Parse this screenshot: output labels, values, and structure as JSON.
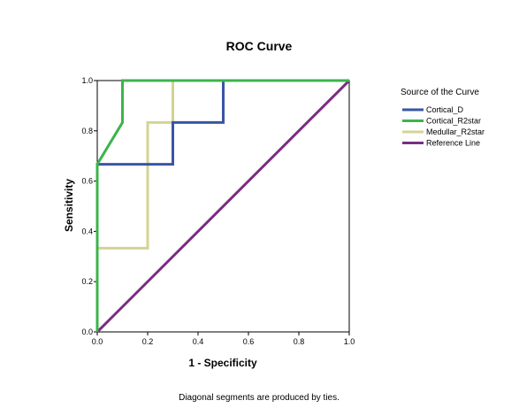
{
  "chart_data": {
    "type": "line",
    "title": "ROC Curve",
    "xlabel": "1 - Specificity",
    "ylabel": "Sensitivity",
    "xlim": [
      0,
      1
    ],
    "ylim": [
      0,
      1
    ],
    "x_ticks": [
      "0.0",
      "0.2",
      "0.4",
      "0.6",
      "0.8",
      "1.0"
    ],
    "y_ticks": [
      "0.0",
      "0.2",
      "0.4",
      "0.6",
      "0.8",
      "1.0"
    ],
    "grid": false,
    "legend": {
      "title": "Source of the Curve",
      "position": "right"
    },
    "series": [
      {
        "name": "Cortical_D",
        "color": "#3a55a4",
        "points": [
          [
            0,
            0
          ],
          [
            0,
            0.667
          ],
          [
            0.3,
            0.667
          ],
          [
            0.3,
            0.833
          ],
          [
            0.5,
            0.833
          ],
          [
            0.5,
            1.0
          ],
          [
            1.0,
            1.0
          ]
        ]
      },
      {
        "name": "Cortical_R2star",
        "color": "#3cb44b",
        "points": [
          [
            0,
            0
          ],
          [
            0,
            0.667
          ],
          [
            0.1,
            0.833
          ],
          [
            0.1,
            1.0
          ],
          [
            1.0,
            1.0
          ]
        ]
      },
      {
        "name": "Medullar_R2star",
        "color": "#d4d394",
        "points": [
          [
            0,
            0
          ],
          [
            0,
            0.333
          ],
          [
            0.2,
            0.333
          ],
          [
            0.2,
            0.833
          ],
          [
            0.3,
            0.833
          ],
          [
            0.3,
            1.0
          ],
          [
            1.0,
            1.0
          ]
        ]
      },
      {
        "name": "Reference Line",
        "color": "#7b2c83",
        "points": [
          [
            0,
            0
          ],
          [
            1,
            1
          ]
        ]
      }
    ],
    "footnote": "Diagonal segments are produced by ties."
  }
}
